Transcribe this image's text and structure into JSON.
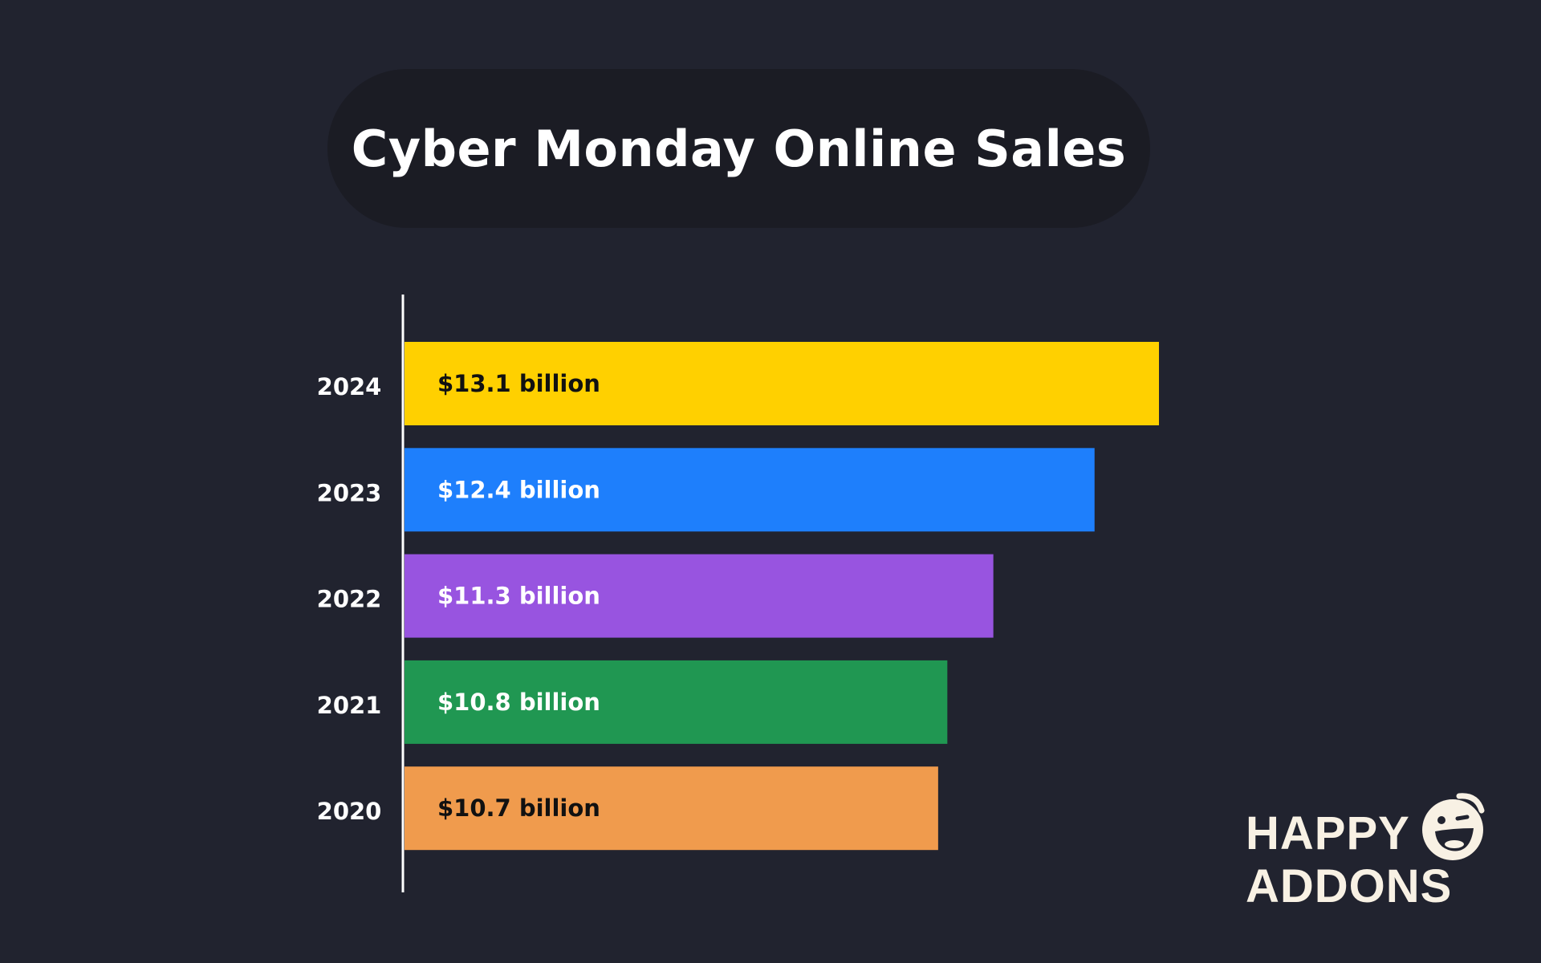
{
  "chart_data": {
    "type": "bar",
    "orientation": "horizontal",
    "title": "Cyber Monday Online Sales",
    "categories": [
      "2024",
      "2023",
      "2022",
      "2021",
      "2020"
    ],
    "values": [
      13.1,
      12.4,
      11.3,
      10.8,
      10.7
    ],
    "value_labels": [
      "$13.1 billion",
      "$12.4 billion",
      "$11.3 billion",
      "$10.8 billion",
      "$10.7 billion"
    ],
    "colors": [
      "#ffd000",
      "#1e7ffc",
      "#9854e0",
      "#209752",
      "#f09b4d"
    ],
    "label_colors": [
      "#111111",
      "#ffffff",
      "#ffffff",
      "#ffffff",
      "#111111"
    ],
    "xlabel": "",
    "ylabel": "",
    "xlim": [
      4.9,
      13.1
    ],
    "grid": false,
    "legend": "none"
  },
  "brand": {
    "line1": "HAPPY",
    "line2": "ADDONS",
    "color": "#f8f1e4"
  }
}
